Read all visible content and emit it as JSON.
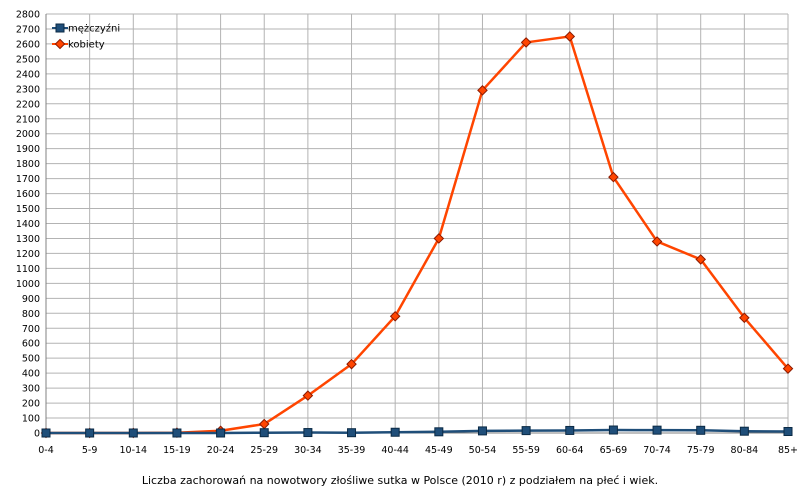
{
  "chart_data": {
    "type": "line",
    "title": "Liczba zachorowań na nowotwory złośliwe sutka w Polsce (2010 r) z podziałem na płeć i wiek.",
    "xlabel": "",
    "ylabel": "",
    "ylim": [
      0,
      2800
    ],
    "ytick_step": 100,
    "grid": true,
    "legend_position": "top-left",
    "categories": [
      "0-4",
      "5-9",
      "10-14",
      "15-19",
      "20-24",
      "25-29",
      "30-34",
      "35-39",
      "40-44",
      "45-49",
      "50-54",
      "55-59",
      "60-64",
      "65-69",
      "70-74",
      "75-79",
      "80-84",
      "85+"
    ],
    "series": [
      {
        "name": "mężczyźni",
        "color": "#1f4e79",
        "marker": "square",
        "values": [
          0,
          0,
          0,
          0,
          0,
          2,
          3,
          2,
          5,
          8,
          14,
          16,
          17,
          20,
          19,
          18,
          12,
          10
        ]
      },
      {
        "name": "kobiety",
        "color": "#ff4500",
        "marker": "diamond",
        "values": [
          0,
          0,
          0,
          2,
          15,
          60,
          250,
          460,
          780,
          1300,
          2290,
          2610,
          2650,
          1710,
          1280,
          1160,
          770,
          430
        ]
      }
    ]
  }
}
